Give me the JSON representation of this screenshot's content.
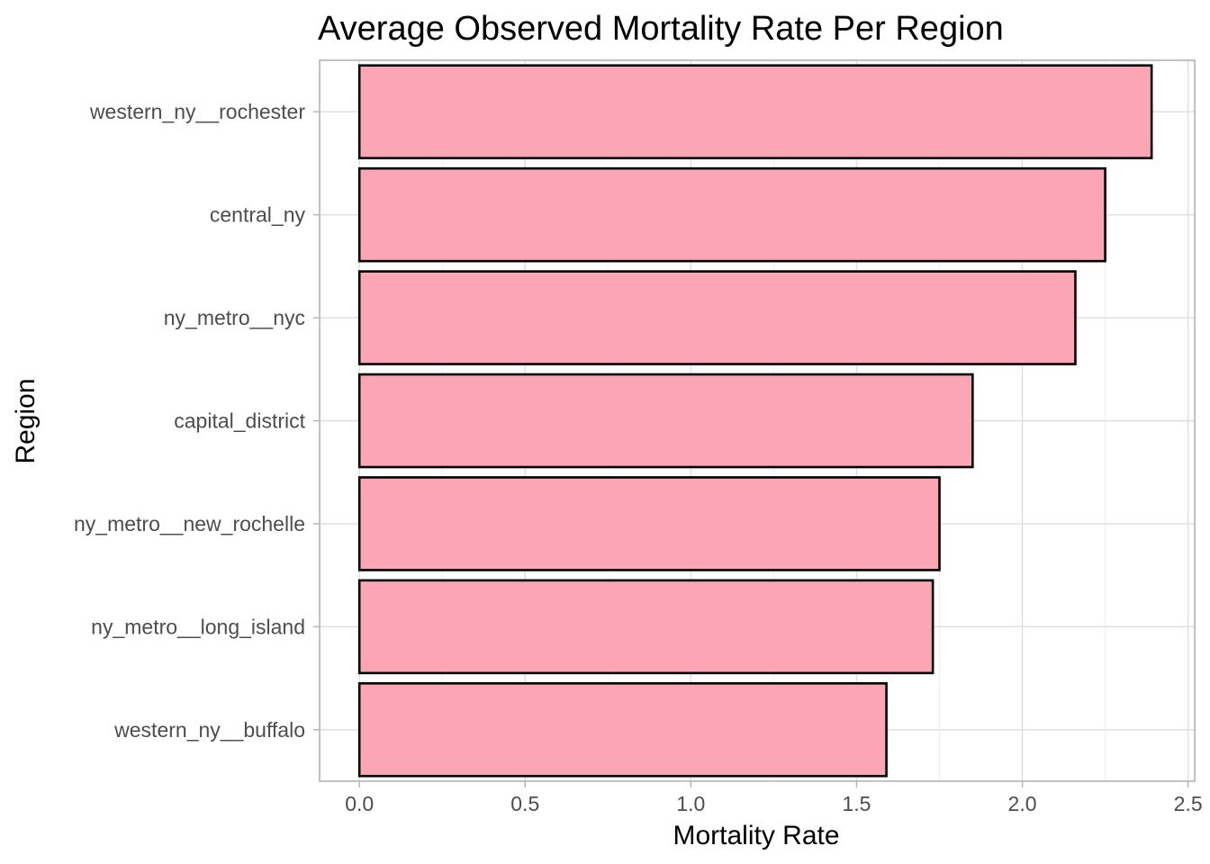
{
  "chart_data": {
    "type": "bar",
    "orientation": "horizontal",
    "title": "Average Observed Mortality Rate Per Region",
    "xlabel": "Mortality Rate",
    "ylabel": "Region",
    "categories": [
      "western_ny__rochester",
      "central_ny",
      "ny_metro__nyc",
      "capital_district",
      "ny_metro__new_rochelle",
      "ny_metro__long_island",
      "western_ny__buffalo"
    ],
    "values": [
      2.39,
      2.25,
      2.16,
      1.85,
      1.75,
      1.73,
      1.59
    ],
    "xlim": [
      -0.12,
      2.52
    ],
    "x_ticks": [
      "0.0",
      "0.5",
      "1.0",
      "1.5",
      "2.0",
      "2.5"
    ],
    "bar_fill": "#fca6b5",
    "bar_outline": "#000000",
    "grid": true,
    "legend": "none"
  }
}
